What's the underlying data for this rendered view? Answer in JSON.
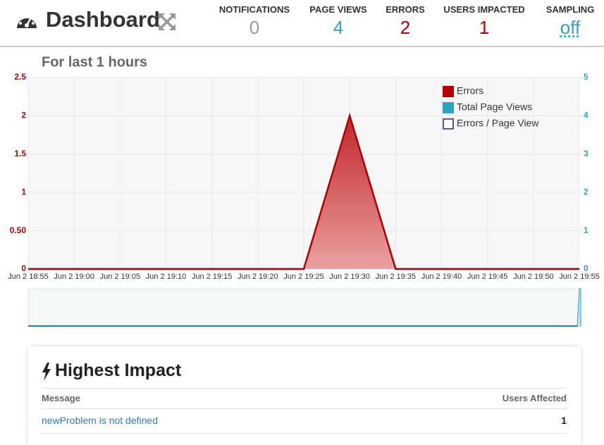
{
  "header": {
    "title": "Dashboard"
  },
  "stats": [
    {
      "label": "NOTIFICATIONS",
      "value": 0
    },
    {
      "label": "PAGE VIEWS",
      "value": 4
    },
    {
      "label": "ERRORS",
      "value": 2
    },
    {
      "label": "USERS IMPACTED",
      "value": 1
    },
    {
      "label": "SAMPLING",
      "value": "off"
    }
  ],
  "chart_data": {
    "type": "line",
    "title": "For last 1 hours",
    "categories": [
      "Jun 2 18:55",
      "Jun 2 19:00",
      "Jun 2 19:05",
      "Jun 2 19:10",
      "Jun 2 19:15",
      "Jun 2 19:20",
      "Jun 2 19:25",
      "Jun 2 19:30",
      "Jun 2 19:35",
      "Jun 2 19:40",
      "Jun 2 19:45",
      "Jun 2 19:50",
      "Jun 2 19:55"
    ],
    "series": [
      {
        "name": "Errors",
        "color": "#b30000",
        "area": true,
        "values": [
          0,
          0,
          0,
          0,
          0,
          0,
          0,
          2,
          0,
          0,
          0,
          0,
          0
        ]
      },
      {
        "name": "Total Page Views",
        "color": "#2ea3bf",
        "axis": "y2",
        "values": [
          0,
          0,
          0,
          0,
          0,
          0,
          0,
          4,
          0,
          0,
          0,
          0,
          0
        ]
      },
      {
        "name": "Errors / Page View",
        "color": "#6b4fa0",
        "outline": true,
        "values": [
          null,
          null,
          null,
          null,
          null,
          null,
          null,
          null,
          null,
          null,
          null,
          null,
          null
        ]
      }
    ],
    "ylim": [
      0,
      2.5
    ],
    "yticks": [
      0,
      {
        "value": 0.5,
        "label": "0.50"
      },
      1,
      1.5,
      2,
      2.5
    ],
    "y2lim": [
      0,
      5
    ],
    "y2ticks": [
      0,
      1,
      2,
      3,
      4,
      5
    ],
    "grid": true,
    "legend": "top-right"
  },
  "impact": {
    "title": "Highest Impact",
    "columns": [
      "Message",
      "Users Affected"
    ],
    "rows": [
      [
        "newProblem is not defined",
        1
      ]
    ]
  }
}
